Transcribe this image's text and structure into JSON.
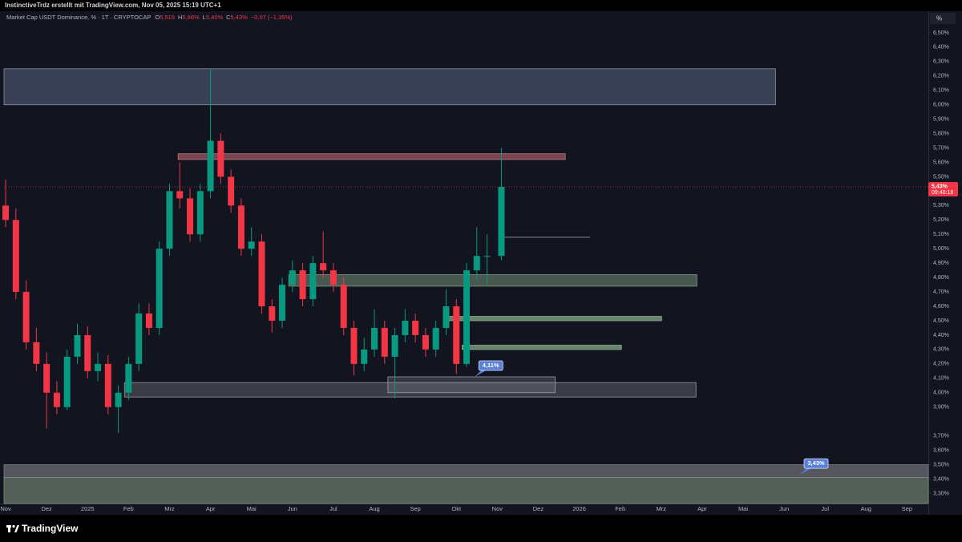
{
  "header": {
    "credit": "InstinctiveTrdz erstellt mit TradingView.com, Nov 05, 2025 15:19 UTC+1",
    "symbol": "Market Cap USDT Dominance, % · 1T · CRYPTOCAP",
    "ohlc": [
      {
        "key": "O",
        "value": "5,515"
      },
      {
        "key": "H",
        "value": "5,66%"
      },
      {
        "key": "L",
        "value": "5,40%"
      },
      {
        "key": "C",
        "value": "5,43%"
      }
    ],
    "change": "−0,07 (−1,35%)",
    "scale_button": "%"
  },
  "footer": {
    "brand": "TradingView"
  },
  "chart_data": {
    "type": "candlestick",
    "up_color": "#089981",
    "down_color": "#f23645",
    "xlim": [
      -0.04,
      22.52
    ],
    "ylim": [
      3.23,
      6.65
    ],
    "xticks": [
      {
        "value": 0,
        "label": "Nov"
      },
      {
        "value": 1,
        "label": "Dez"
      },
      {
        "value": 2,
        "label": "2025"
      },
      {
        "value": 3,
        "label": "Feb"
      },
      {
        "value": 4,
        "label": "Mrz"
      },
      {
        "value": 5,
        "label": "Apr"
      },
      {
        "value": 6,
        "label": "Mai"
      },
      {
        "value": 7,
        "label": "Jun"
      },
      {
        "value": 8,
        "label": "Jul"
      },
      {
        "value": 9,
        "label": "Aug"
      },
      {
        "value": 10,
        "label": "Sep"
      },
      {
        "value": 11,
        "label": "Okt"
      },
      {
        "value": 12,
        "label": "Nov"
      },
      {
        "value": 13,
        "label": "Dez"
      },
      {
        "value": 14,
        "label": "2026"
      },
      {
        "value": 15,
        "label": "Feb"
      },
      {
        "value": 16,
        "label": "Mrz"
      },
      {
        "value": 17,
        "label": "Apr"
      },
      {
        "value": 18,
        "label": "Mai"
      },
      {
        "value": 19,
        "label": "Jun"
      },
      {
        "value": 20,
        "label": "Jul"
      },
      {
        "value": 21,
        "label": "Aug"
      },
      {
        "value": 22,
        "label": "Sep"
      }
    ],
    "yticks": [
      {
        "value": 6.5,
        "label": "6,50%"
      },
      {
        "value": 6.4,
        "label": "6,40%"
      },
      {
        "value": 6.3,
        "label": "6,30%"
      },
      {
        "value": 6.2,
        "label": "6,20%"
      },
      {
        "value": 6.1,
        "label": "6,10%"
      },
      {
        "value": 6.0,
        "label": "6,00%"
      },
      {
        "value": 5.9,
        "label": "5,90%"
      },
      {
        "value": 5.8,
        "label": "5,80%"
      },
      {
        "value": 5.7,
        "label": "5,70%"
      },
      {
        "value": 5.6,
        "label": "5,60%"
      },
      {
        "value": 5.5,
        "label": "5,50%"
      },
      {
        "value": 5.3,
        "label": "5,30%"
      },
      {
        "value": 5.2,
        "label": "5,20%"
      },
      {
        "value": 5.1,
        "label": "5,10%"
      },
      {
        "value": 5.0,
        "label": "5,00%"
      },
      {
        "value": 4.9,
        "label": "4,90%"
      },
      {
        "value": 4.8,
        "label": "4,80%"
      },
      {
        "value": 4.7,
        "label": "4,70%"
      },
      {
        "value": 4.6,
        "label": "4,60%"
      },
      {
        "value": 4.5,
        "label": "4,50%"
      },
      {
        "value": 4.4,
        "label": "4,40%"
      },
      {
        "value": 4.3,
        "label": "4,30%"
      },
      {
        "value": 4.2,
        "label": "4,20%"
      },
      {
        "value": 4.1,
        "label": "4,10%"
      },
      {
        "value": 4.0,
        "label": "4,00%"
      },
      {
        "value": 3.9,
        "label": "3,90%"
      },
      {
        "value": 3.7,
        "label": "3,70%"
      },
      {
        "value": 3.6,
        "label": "3,60%"
      },
      {
        "value": 3.5,
        "label": "3,50%"
      },
      {
        "value": 3.4,
        "label": "3,40%"
      },
      {
        "value": 3.3,
        "label": "3,30%"
      }
    ],
    "x": [
      0,
      0.25,
      0.5,
      0.75,
      1,
      1.25,
      1.5,
      1.75,
      2,
      2.25,
      2.5,
      2.75,
      3,
      3.25,
      3.5,
      3.75,
      4,
      4.25,
      4.5,
      4.75,
      5,
      5.25,
      5.5,
      5.75,
      6,
      6.25,
      6.5,
      6.75,
      7,
      7.25,
      7.5,
      7.75,
      8,
      8.25,
      8.5,
      8.75,
      9,
      9.25,
      9.5,
      9.75,
      10,
      10.25,
      10.5,
      10.75,
      11,
      11.25,
      11.5,
      11.75,
      12.1
    ],
    "open": [
      5.3,
      5.2,
      4.7,
      4.35,
      4.2,
      4.0,
      3.9,
      4.25,
      4.4,
      4.15,
      4.2,
      3.9,
      4.0,
      4.2,
      4.55,
      4.45,
      5.0,
      5.4,
      5.35,
      5.1,
      5.4,
      5.75,
      5.5,
      5.3,
      5.0,
      5.05,
      4.6,
      4.5,
      4.75,
      4.85,
      4.65,
      4.9,
      4.85,
      4.75,
      4.45,
      4.2,
      4.3,
      4.45,
      4.25,
      4.4,
      4.5,
      4.4,
      4.3,
      4.45,
      4.6,
      4.2,
      4.85,
      4.95,
      4.95
    ],
    "high": [
      5.48,
      5.28,
      4.78,
      4.45,
      4.28,
      4.08,
      4.3,
      4.48,
      4.46,
      4.28,
      4.26,
      4.05,
      4.25,
      4.62,
      4.62,
      5.05,
      5.45,
      5.6,
      5.42,
      5.45,
      6.25,
      5.8,
      5.55,
      5.35,
      5.15,
      5.1,
      4.65,
      4.8,
      4.92,
      4.9,
      4.95,
      5.12,
      4.9,
      4.8,
      4.5,
      4.38,
      4.58,
      4.5,
      4.45,
      4.58,
      4.55,
      4.45,
      4.5,
      4.72,
      4.65,
      4.9,
      5.15,
      5.1,
      5.7
    ],
    "low": [
      5.15,
      4.65,
      4.3,
      4.15,
      3.75,
      3.85,
      3.88,
      4.2,
      4.1,
      4.08,
      3.85,
      3.72,
      3.95,
      4.15,
      4.4,
      4.4,
      4.95,
      5.28,
      5.05,
      5.05,
      5.35,
      5.45,
      5.25,
      4.95,
      4.95,
      4.55,
      4.42,
      4.45,
      4.7,
      4.6,
      4.6,
      4.8,
      4.7,
      4.4,
      4.12,
      4.15,
      4.25,
      4.2,
      3.96,
      4.35,
      4.35,
      4.25,
      4.25,
      4.4,
      4.13,
      4.18,
      4.78,
      4.75,
      4.92
    ],
    "close": [
      5.2,
      4.7,
      4.35,
      4.2,
      4.0,
      3.9,
      4.25,
      4.4,
      4.15,
      4.2,
      3.9,
      4.0,
      4.2,
      4.55,
      4.45,
      5.0,
      5.4,
      5.35,
      5.1,
      5.4,
      5.75,
      5.5,
      5.3,
      5.0,
      5.05,
      4.6,
      4.5,
      4.75,
      4.85,
      4.65,
      4.9,
      4.85,
      4.75,
      4.45,
      4.2,
      4.3,
      4.45,
      4.25,
      4.4,
      4.5,
      4.4,
      4.3,
      4.45,
      4.6,
      4.2,
      4.85,
      4.95,
      4.95,
      5.43
    ],
    "zones": [
      {
        "x": [
          -0.04,
          18.79
        ],
        "y": [
          6.0,
          6.25
        ],
        "color": "rgba(120,135,170,0.38)",
        "border": "#8a93a8"
      },
      {
        "x": [
          4.21,
          13.66
        ],
        "y": [
          5.62,
          5.66
        ],
        "color": "rgba(200,110,120,0.55)",
        "border": "#c47a85"
      },
      {
        "x": [
          6.91,
          16.87
        ],
        "y": [
          4.74,
          4.82
        ],
        "color": "rgba(140,170,140,0.45)",
        "border": "#7f9a80"
      },
      {
        "x": [
          10.69,
          16.01
        ],
        "y": [
          4.5,
          4.53
        ],
        "color": "rgba(150,190,150,0.65)",
        "border": "#8fb08f"
      },
      {
        "x": [
          11.14,
          15.03
        ],
        "y": [
          4.3,
          4.33
        ],
        "color": "rgba(150,190,150,0.65)",
        "border": "#8fb08f"
      },
      {
        "x": [
          2.9,
          16.85
        ],
        "y": [
          3.97,
          4.07
        ],
        "color": "rgba(140,140,150,0.32)",
        "border": "#9a9aa5"
      },
      {
        "x": [
          9.33,
          13.41
        ],
        "y": [
          4.0,
          4.11
        ],
        "color": "rgba(140,140,150,0.28)",
        "border": "#a0a0aa"
      },
      {
        "x": [
          -0.04,
          22.52
        ],
        "y": [
          3.41,
          3.5
        ],
        "color": "rgba(110,110,115,0.75)",
        "border": "#7a7a80"
      },
      {
        "x": [
          -0.04,
          22.52
        ],
        "y": [
          3.23,
          3.41
        ],
        "color": "rgba(105,120,105,0.75)",
        "border": "#7d8f7d"
      }
    ],
    "lines": [
      {
        "x": [
          12.09,
          14.27
        ],
        "y": 5.08,
        "color": "#6b6e78"
      }
    ],
    "annotations": [
      {
        "x": 11.45,
        "value": 4.11,
        "label": "4,11%"
      },
      {
        "x": 19.39,
        "value": 3.43,
        "label": "3,43%"
      }
    ],
    "last_price": {
      "value": 5.43,
      "label": "5,43%",
      "countdown": "09:40:18",
      "color": "#f23645"
    }
  }
}
